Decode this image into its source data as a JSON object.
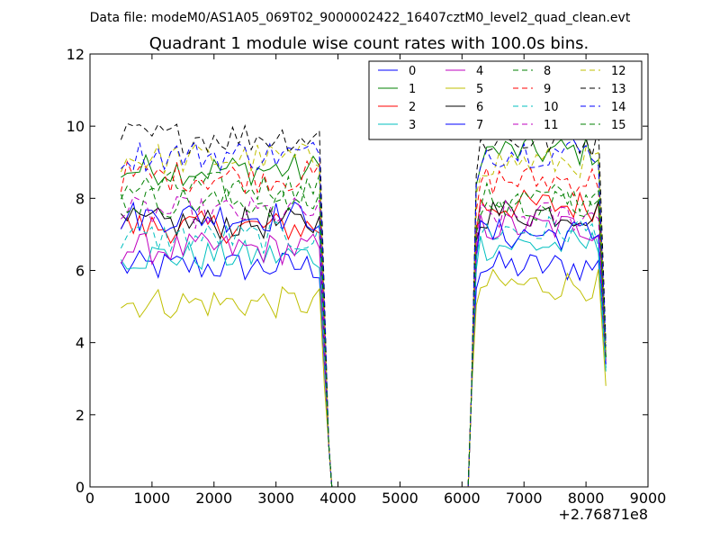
{
  "header": {
    "data_file": "Data file: modeM0/AS1A05_069T02_9000002422_16407cztM0_level2_quad_clean.evt"
  },
  "chart_data": {
    "type": "line",
    "title": "Quadrant 1 module wise count rates with 100.0s bins.",
    "xlabel": "",
    "ylabel": "",
    "x_offset_label": "+2.76871e8",
    "xlim": [
      0,
      9000
    ],
    "ylim": [
      0,
      12
    ],
    "x_ticks": [
      0,
      1000,
      2000,
      3000,
      4000,
      5000,
      6000,
      7000,
      8000,
      9000
    ],
    "y_ticks": [
      0,
      2,
      4,
      6,
      8,
      10,
      12
    ],
    "grid": false,
    "legend_position": "top-right",
    "legend_columns": 4,
    "segments": [
      {
        "x_start": 500,
        "x_end": 3700,
        "x_drop": 3780,
        "x_low": 3900
      },
      {
        "x_start": 6300,
        "x_end": 8250,
        "x_rise": 6150,
        "x_last": 8320
      }
    ],
    "gap_range": [
      3900,
      6100
    ],
    "series": [
      {
        "name": "0",
        "style": "solid",
        "color": "#0000ff",
        "level1": 6.1,
        "level2": 6.1,
        "last": 3.3
      },
      {
        "name": "1",
        "style": "solid",
        "color": "#008000",
        "level1": 8.8,
        "level2": 9.3,
        "last": 3.6
      },
      {
        "name": "2",
        "style": "solid",
        "color": "#ff0000",
        "level1": 7.2,
        "level2": 7.8,
        "last": 3.5
      },
      {
        "name": "3",
        "style": "solid",
        "color": "#00bfbf",
        "level1": 6.4,
        "level2": 6.7,
        "last": 3.2
      },
      {
        "name": "4",
        "style": "solid",
        "color": "#bf00bf",
        "level1": 6.6,
        "level2": 7.2,
        "last": 3.4
      },
      {
        "name": "5",
        "style": "solid",
        "color": "#bfbf00",
        "level1": 5.1,
        "level2": 5.6,
        "last": 2.8
      },
      {
        "name": "6",
        "style": "solid",
        "color": "#000000",
        "level1": 7.3,
        "level2": 7.6,
        "last": 3.6
      },
      {
        "name": "7",
        "style": "solid",
        "color": "#0000ff",
        "level1": 7.5,
        "level2": 7.0,
        "last": 3.4
      },
      {
        "name": "8",
        "style": "dashed",
        "color": "#008000",
        "level1": 8.3,
        "level2": 8.0,
        "last": 3.6
      },
      {
        "name": "9",
        "style": "dashed",
        "color": "#ff0000",
        "level1": 8.6,
        "level2": 8.5,
        "last": 3.7
      },
      {
        "name": "10",
        "style": "dashed",
        "color": "#00bfbf",
        "level1": 6.9,
        "level2": 7.1,
        "last": 3.3
      },
      {
        "name": "11",
        "style": "dashed",
        "color": "#bf00bf",
        "level1": 7.6,
        "level2": 7.5,
        "last": 3.5
      },
      {
        "name": "12",
        "style": "dashed",
        "color": "#bfbf00",
        "level1": 9.1,
        "level2": 9.0,
        "last": 3.8
      },
      {
        "name": "13",
        "style": "dashed",
        "color": "#000000",
        "level1": 9.7,
        "level2": 9.6,
        "last": 4.0
      },
      {
        "name": "14",
        "style": "dashed",
        "color": "#0000ff",
        "level1": 9.2,
        "level2": 9.3,
        "last": 3.9
      },
      {
        "name": "15",
        "style": "dashed",
        "color": "#008000",
        "level1": 7.9,
        "level2": 7.8,
        "last": 3.6
      }
    ]
  }
}
